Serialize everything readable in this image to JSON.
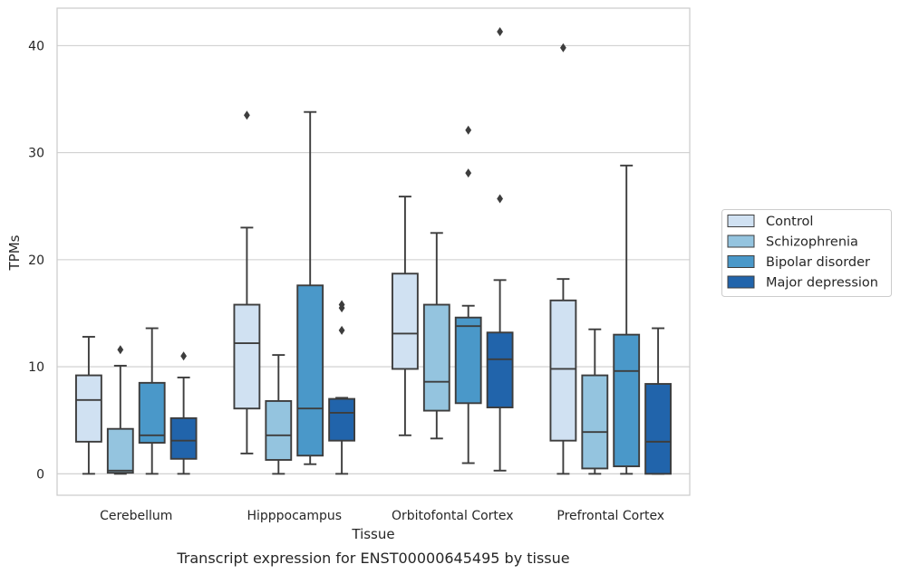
{
  "caption": "Transcript expression for ENST00000645495 by tissue",
  "chart_data": {
    "type": "box",
    "xlabel": "Tissue",
    "ylabel": "TPMs",
    "ylim": [
      -2,
      43.5
    ],
    "yticks": [
      0,
      10,
      20,
      30,
      40
    ],
    "grid": "horizontal",
    "legend_position": "right",
    "categories": [
      "Cerebellum",
      "Hipppocampus",
      "Orbitofontal Cortex",
      "Prefrontal Cortex"
    ],
    "series": [
      {
        "name": "Control",
        "color": "#d0e1f2",
        "boxes": [
          {
            "whislo": 0,
            "q1": 3.0,
            "med": 6.9,
            "q3": 9.2,
            "whishi": 12.8,
            "fliers": []
          },
          {
            "whislo": 1.9,
            "q1": 6.1,
            "med": 12.2,
            "q3": 15.8,
            "whishi": 23.0,
            "fliers": [
              33.5
            ]
          },
          {
            "whislo": 3.6,
            "q1": 9.8,
            "med": 13.1,
            "q3": 18.7,
            "whishi": 25.9,
            "fliers": []
          },
          {
            "whislo": 0,
            "q1": 3.1,
            "med": 9.8,
            "q3": 16.2,
            "whishi": 18.2,
            "fliers": [
              39.8
            ]
          }
        ]
      },
      {
        "name": "Schizophrenia",
        "color": "#94c4df",
        "boxes": [
          {
            "whislo": 0,
            "q1": 0.1,
            "med": 0.3,
            "q3": 4.2,
            "whishi": 10.1,
            "fliers": [
              11.6
            ]
          },
          {
            "whislo": 0,
            "q1": 1.3,
            "med": 3.6,
            "q3": 6.8,
            "whishi": 11.1,
            "fliers": []
          },
          {
            "whislo": 3.3,
            "q1": 5.9,
            "med": 8.6,
            "q3": 15.8,
            "whishi": 22.5,
            "fliers": []
          },
          {
            "whislo": 0,
            "q1": 0.5,
            "med": 3.9,
            "q3": 9.2,
            "whishi": 13.5,
            "fliers": []
          }
        ]
      },
      {
        "name": "Bipolar disorder",
        "color": "#4a98c9",
        "boxes": [
          {
            "whislo": 0,
            "q1": 2.9,
            "med": 3.6,
            "q3": 8.5,
            "whishi": 13.6,
            "fliers": []
          },
          {
            "whislo": 0.9,
            "q1": 1.7,
            "med": 6.1,
            "q3": 17.6,
            "whishi": 33.8,
            "fliers": []
          },
          {
            "whislo": 1.0,
            "q1": 6.6,
            "med": 13.8,
            "q3": 14.6,
            "whishi": 15.7,
            "fliers": [
              32.1,
              28.1
            ]
          },
          {
            "whislo": 0,
            "q1": 0.7,
            "med": 9.6,
            "q3": 13.0,
            "whishi": 28.8,
            "fliers": []
          }
        ]
      },
      {
        "name": "Major depression",
        "color": "#2164ab",
        "boxes": [
          {
            "whislo": 0,
            "q1": 1.4,
            "med": 3.1,
            "q3": 5.2,
            "whishi": 9.0,
            "fliers": [
              11.0
            ]
          },
          {
            "whislo": 0,
            "q1": 3.1,
            "med": 5.7,
            "q3": 7.0,
            "whishi": 7.1,
            "fliers": [
              15.8,
              15.5,
              13.4
            ]
          },
          {
            "whislo": 0.3,
            "q1": 6.2,
            "med": 10.7,
            "q3": 13.2,
            "whishi": 18.1,
            "fliers": [
              41.3,
              25.7
            ]
          },
          {
            "whislo": 0,
            "q1": 0,
            "med": 3.0,
            "q3": 8.4,
            "whishi": 13.6,
            "fliers": []
          }
        ]
      }
    ]
  }
}
